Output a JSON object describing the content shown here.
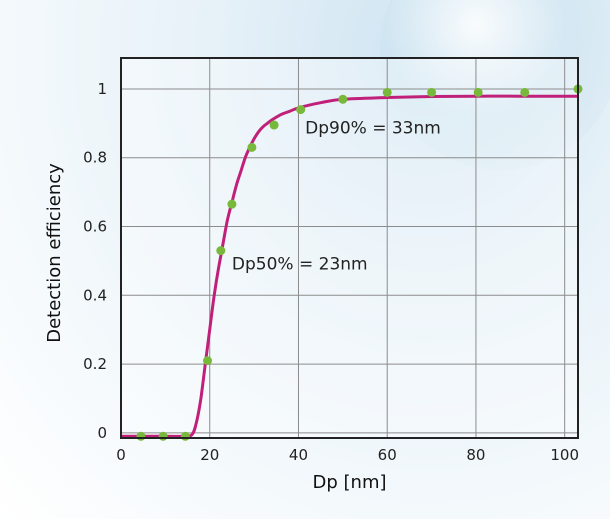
{
  "chart_data": {
    "type": "scatter",
    "xlabel": "Dp [nm]",
    "ylabel": "Detection efficiency",
    "xlim": [
      0,
      103
    ],
    "ylim": [
      -0.015,
      1.09
    ],
    "x_ticks": [
      0,
      20,
      40,
      60,
      80,
      100
    ],
    "y_ticks": [
      0,
      0.2,
      0.4,
      0.6,
      0.8,
      1
    ],
    "y_tick_labels": [
      "0",
      "0.2",
      "0.4",
      "0.6",
      "0.8",
      "1"
    ],
    "grid": true,
    "series": [
      {
        "kind": "points",
        "color": "#78b83a",
        "x": [
          4.5,
          9.5,
          14.5,
          19.5,
          22.5,
          25,
          29.5,
          34.5,
          40.5,
          50,
          60,
          70,
          80.5,
          91,
          103
        ],
        "y": [
          -0.01,
          -0.01,
          -0.01,
          0.21,
          0.53,
          0.665,
          0.83,
          0.895,
          0.94,
          0.97,
          0.99,
          0.99,
          0.99,
          0.99,
          1.0
        ]
      },
      {
        "kind": "fit-curve",
        "color": "#c0207a",
        "x": [
          0,
          10,
          14,
          16,
          17,
          18,
          19,
          20,
          21,
          22,
          23,
          24,
          25,
          26,
          27,
          28,
          29,
          30,
          31,
          32,
          33,
          34,
          36,
          38,
          40,
          45,
          50,
          60,
          70,
          80,
          90,
          103
        ],
        "y": [
          -0.01,
          -0.01,
          -0.01,
          -0.005,
          0.03,
          0.1,
          0.2,
          0.3,
          0.4,
          0.48,
          0.55,
          0.62,
          0.67,
          0.72,
          0.76,
          0.8,
          0.83,
          0.855,
          0.875,
          0.89,
          0.9,
          0.91,
          0.925,
          0.935,
          0.945,
          0.96,
          0.97,
          0.975,
          0.978,
          0.979,
          0.979,
          0.979
        ]
      }
    ],
    "annotations": [
      {
        "text": "Dp90% = 33nm",
        "x": 41.5,
        "y": 0.87
      },
      {
        "text": "Dp50% = 23nm",
        "x": 25,
        "y": 0.475
      }
    ]
  }
}
